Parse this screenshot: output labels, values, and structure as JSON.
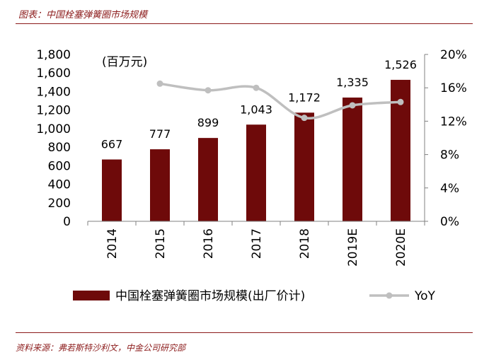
{
  "figure_title": "图表：中国栓塞弹簧圈市场规模",
  "source_note": "资料来源：弗若斯特沙利文，中金公司研究部",
  "chart_data": {
    "type": "bar",
    "categories": [
      "2014",
      "2015",
      "2016",
      "2017",
      "2018",
      "2019E",
      "2020E"
    ],
    "series": [
      {
        "name": "中国栓塞弹簧圈市场规模(出厂价计)",
        "type": "bar",
        "axis": "left",
        "color": "#6e0a0a",
        "values": [
          667,
          777,
          899,
          1043,
          1172,
          1335,
          1526
        ],
        "labels": [
          "667",
          "777",
          "899",
          "1,043",
          "1,172",
          "1,335",
          "1,526"
        ]
      },
      {
        "name": "YoY",
        "type": "line",
        "axis": "right",
        "color": "#bfbfbf",
        "values": [
          null,
          16.5,
          15.7,
          16.0,
          12.4,
          13.9,
          14.3
        ]
      }
    ],
    "unit_label": "(百万元)",
    "ylim": [
      0,
      1800
    ],
    "y_ticks": [
      "0",
      "200",
      "400",
      "600",
      "800",
      "1,000",
      "1,200",
      "1,400",
      "1,600",
      "1,800"
    ],
    "y2lim": [
      0,
      20
    ],
    "y2_ticks": [
      "0%",
      "4%",
      "8%",
      "12%",
      "16%",
      "20%"
    ],
    "legend": "bottom",
    "grid": false
  }
}
